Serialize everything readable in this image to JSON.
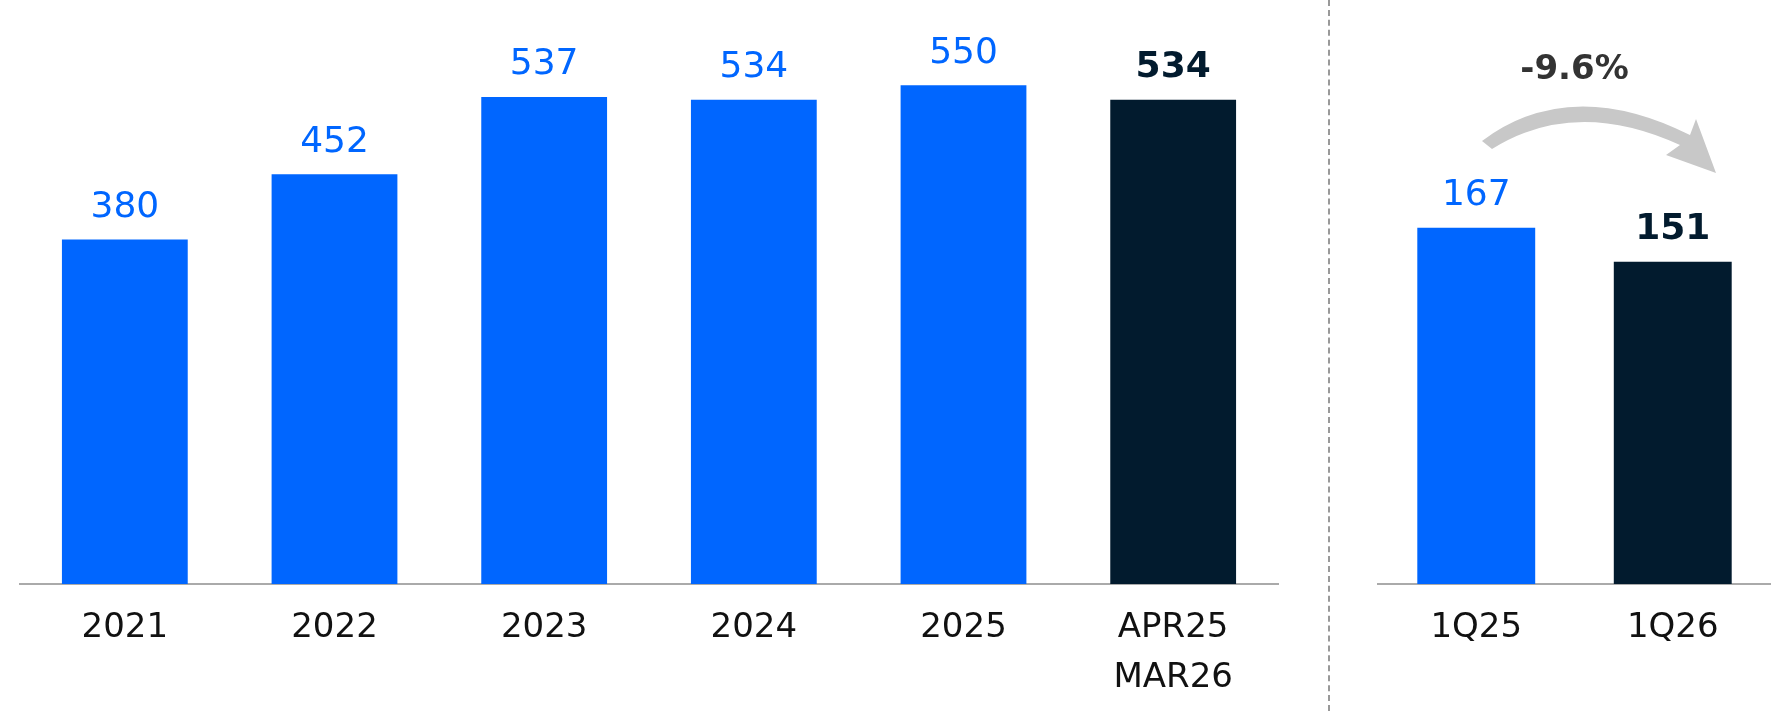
{
  "chart_data": [
    {
      "type": "bar",
      "categories": [
        "2021",
        "2022",
        "2023",
        "2024",
        "2025",
        "APR25 MAR26"
      ],
      "values": [
        380,
        452,
        537,
        534,
        550,
        534
      ],
      "colors": [
        "#0066ff",
        "#0066ff",
        "#0066ff",
        "#0066ff",
        "#0066ff",
        "#021b2e"
      ],
      "data_labels": true,
      "grid": false,
      "legend": false,
      "tick_labels": "x"
    },
    {
      "type": "bar",
      "categories": [
        "1Q25",
        "1Q26"
      ],
      "values": [
        167,
        151
      ],
      "colors": [
        "#0066ff",
        "#021b2e"
      ],
      "data_labels": true,
      "grid": false,
      "legend": false,
      "tick_labels": "x",
      "annotations": [
        "-9.6%"
      ]
    }
  ]
}
